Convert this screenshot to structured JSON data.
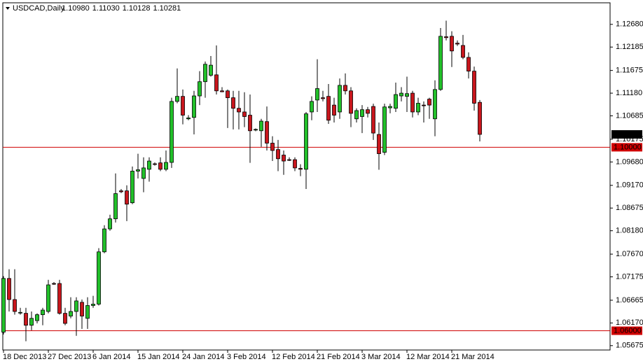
{
  "chart_data": {
    "type": "candlestick",
    "symbol": "USDCAD,Daily",
    "last_labels": [
      "1.10980",
      "1.11030",
      "1.10128",
      "1.10281"
    ],
    "categories": [
      "18 Dec 2013",
      null,
      null,
      null,
      null,
      null,
      null,
      null,
      "27 Dec 2013",
      null,
      null,
      null,
      null,
      null,
      null,
      null,
      "6 Jan 2014",
      null,
      null,
      null,
      null,
      null,
      null,
      null,
      "15 Jan 2014",
      null,
      null,
      null,
      null,
      null,
      null,
      null,
      "24 Jan 2014",
      null,
      null,
      null,
      null,
      null,
      null,
      null,
      "3 Feb 2014",
      null,
      null,
      null,
      null,
      null,
      null,
      null,
      "12 Feb 2014",
      null,
      null,
      null,
      null,
      null,
      null,
      null,
      "21 Feb 2014",
      null,
      null,
      null,
      null,
      null,
      null,
      null,
      "3 Mar 2014",
      null,
      null,
      null,
      null,
      null,
      null,
      null,
      "12 Mar 2014",
      null,
      null,
      null,
      null,
      null,
      null,
      null,
      "21 Mar 2014",
      null,
      null,
      null,
      null,
      null
    ],
    "open": [
      1.0597,
      1.0714,
      1.0668,
      1.0639,
      1.0638,
      1.0612,
      1.0622,
      1.0635,
      1.0642,
      1.0703,
      1.0703,
      1.0638,
      1.0632,
      1.0642,
      1.0662,
      1.0627,
      1.0655,
      1.0658,
      1.0772,
      1.0822,
      1.0844,
      1.0905,
      1.0905,
      1.0879,
      1.0948,
      1.0932,
      1.0952,
      1.0964,
      1.0966,
      1.0952,
      1.0967,
      1.11,
      1.1111,
      1.1062,
      1.1065,
      1.1112,
      1.1143,
      1.1157,
      1.1158,
      1.1123,
      1.1123,
      1.1108,
      1.1085,
      1.1077,
      1.107,
      1.1038,
      1.1036,
      1.1056,
      1.1009,
      1.0995,
      1.0983,
      1.0973,
      1.0973,
      1.0954,
      1.0952,
      1.1077,
      1.1103,
      1.1108,
      1.1111,
      1.1092,
      1.1077,
      1.1135,
      1.1123,
      1.1062,
      1.1067,
      1.1082,
      1.1089,
      1.1028,
      1.0989,
      1.1086,
      1.1085,
      1.1112,
      1.1111,
      1.1118,
      1.1077,
      1.1092,
      1.1105,
      1.1062,
      1.1126,
      1.1241,
      1.1242,
      1.1227,
      1.1222,
      1.1196,
      1.1166,
      1.1098
    ],
    "high": [
      1.0719,
      1.0734,
      1.0734,
      1.065,
      1.065,
      1.0642,
      1.0638,
      1.065,
      1.0711,
      1.0706,
      1.0711,
      1.065,
      1.0673,
      1.0673,
      1.0668,
      1.0673,
      1.0676,
      1.078,
      1.083,
      1.0853,
      1.0943,
      1.0909,
      1.0917,
      1.0958,
      1.0986,
      1.0978,
      1.0978,
      1.0967,
      1.0978,
      1.0993,
      1.1108,
      1.1172,
      1.1126,
      1.107,
      1.1123,
      1.1166,
      1.1187,
      1.1199,
      1.1222,
      1.1131,
      1.1126,
      1.1123,
      1.1123,
      1.112,
      1.1115,
      1.1041,
      1.1062,
      1.1089,
      1.1024,
      1.1016,
      1.0993,
      1.0978,
      1.0978,
      1.0963,
      1.1077,
      1.1111,
      1.1192,
      1.1123,
      1.1138,
      1.1108,
      1.115,
      1.1161,
      1.1131,
      1.1085,
      1.1092,
      1.1088,
      1.1095,
      1.1054,
      1.1095,
      1.1095,
      1.1141,
      1.1131,
      1.1154,
      1.1123,
      1.1108,
      1.11,
      1.1108,
      1.1146,
      1.126,
      1.1276,
      1.1253,
      1.1233,
      1.1245,
      1.1207,
      1.1176,
      1.1103
    ],
    "low": [
      1.0592,
      1.0642,
      1.0635,
      1.0635,
      1.0577,
      1.0601,
      1.0616,
      1.0612,
      1.0638,
      1.07,
      1.0635,
      1.0612,
      1.0627,
      1.0589,
      1.0604,
      1.0604,
      1.065,
      1.0655,
      1.0769,
      1.0818,
      1.0836,
      1.09,
      1.0839,
      1.0876,
      1.0932,
      1.0902,
      1.0925,
      1.096,
      1.0948,
      1.0948,
      1.0955,
      1.1096,
      1.105,
      1.1059,
      1.1028,
      1.1092,
      1.1108,
      1.1154,
      1.1115,
      1.112,
      1.1042,
      1.1039,
      1.1039,
      1.1044,
      1.0966,
      1.1035,
      1.1001,
      1.0993,
      1.097,
      1.0948,
      1.094,
      1.097,
      1.0948,
      1.0937,
      1.0909,
      1.1059,
      1.1077,
      1.11,
      1.1051,
      1.1054,
      1.1062,
      1.1115,
      1.1044,
      1.1054,
      1.1031,
      1.1065,
      1.1016,
      1.0951,
      1.0983,
      1.1074,
      1.1077,
      1.11,
      1.1077,
      1.1065,
      1.107,
      1.1054,
      1.1062,
      1.1024,
      1.1123,
      1.1233,
      1.1175,
      1.1221,
      1.1192,
      1.115,
      1.108,
      1.10128
    ],
    "close": [
      1.0714,
      1.0668,
      1.0642,
      1.064,
      1.0612,
      1.0627,
      1.0635,
      1.0645,
      1.07,
      1.0702,
      1.0638,
      1.0616,
      1.0642,
      1.0665,
      1.0632,
      1.0655,
      1.0658,
      1.0772,
      1.0822,
      1.0844,
      1.0899,
      1.0903,
      1.0876,
      1.0948,
      1.0951,
      1.0955,
      1.097,
      1.0963,
      1.0952,
      1.0967,
      1.11,
      1.1111,
      1.107,
      1.1064,
      1.1112,
      1.1143,
      1.1181,
      1.1179,
      1.1123,
      1.1121,
      1.1108,
      1.1085,
      1.1077,
      1.1067,
      1.1036,
      1.1039,
      1.1057,
      1.1009,
      1.0993,
      1.0975,
      1.097,
      1.0972,
      1.0955,
      1.0952,
      1.1073,
      1.11,
      1.1128,
      1.1106,
      1.1059,
      1.107,
      1.1135,
      1.1123,
      1.1074,
      1.108,
      1.1082,
      1.1074,
      1.1031,
      1.0986,
      1.1088,
      1.1089,
      1.1115,
      1.1118,
      1.1117,
      1.1077,
      1.1096,
      1.1091,
      1.1092,
      1.1126,
      1.1242,
      1.1239,
      1.121,
      1.1225,
      1.1196,
      1.1166,
      1.1096,
      1.10281
    ],
    "up_color": "#22c02a",
    "down_color": "#c8161d",
    "ylim": [
      1.0558,
      1.1315
    ],
    "yticks": [
      {
        "value": 1.1268,
        "label": "1.12680"
      },
      1.12185,
      1.11675,
      {
        "value": 1.1118,
        "label": "1.11180"
      },
      1.10685,
      1.10175,
      {
        "value": 1.0968,
        "label": "1.09680"
      },
      {
        "value": 1.0917,
        "label": "1.09170"
      },
      1.08675,
      {
        "value": 1.0818,
        "label": "1.08180"
      },
      {
        "value": 1.0767,
        "label": "1.07670"
      },
      1.07175,
      1.06665,
      {
        "value": 1.0617,
        "label": "1.06170"
      },
      1.05675
    ],
    "hlines": [
      {
        "value": 1.1,
        "label": "1.10000"
      },
      {
        "value": 1.06,
        "label": "1.06000"
      }
    ],
    "hline_color": "#d00000"
  }
}
